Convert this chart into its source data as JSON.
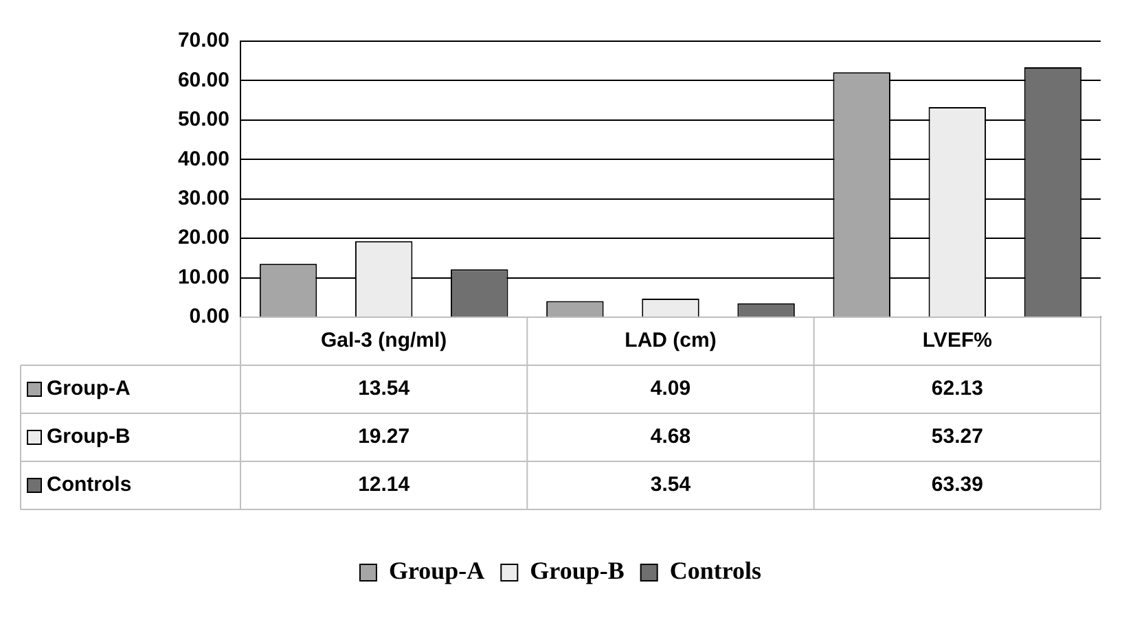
{
  "chart_data": {
    "type": "bar",
    "categories": [
      "Gal-3 (ng/ml)",
      "LAD (cm)",
      "LVEF%"
    ],
    "series": [
      {
        "name": "Group-A",
        "color": "#a6a6a6",
        "values": [
          13.54,
          4.09,
          62.13
        ]
      },
      {
        "name": "Group-B",
        "color": "#ececec",
        "values": [
          19.27,
          4.68,
          53.27
        ]
      },
      {
        "name": "Controls",
        "color": "#707070",
        "values": [
          12.14,
          3.54,
          63.39
        ]
      }
    ],
    "ylim": [
      0,
      70
    ],
    "yticks": [
      {
        "value": 0,
        "label": "0.00"
      },
      {
        "value": 10,
        "label": "10.00"
      },
      {
        "value": 20,
        "label": "20.00"
      },
      {
        "value": 30,
        "label": "30.00"
      },
      {
        "value": 40,
        "label": "40.00"
      },
      {
        "value": 50,
        "label": "50.00"
      },
      {
        "value": 60,
        "label": "60.00"
      },
      {
        "value": 70,
        "label": "70.00"
      }
    ],
    "grid": "y",
    "legend": "bottom",
    "data_labels": true
  }
}
